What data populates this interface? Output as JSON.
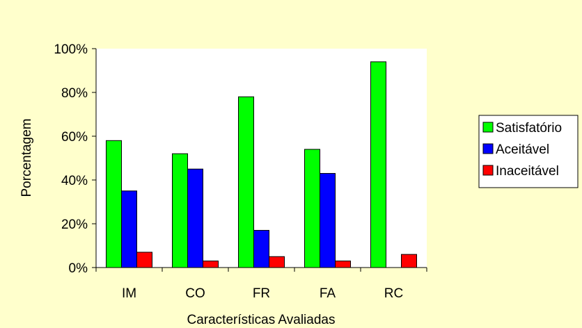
{
  "chart_data": {
    "type": "bar",
    "title": "",
    "xlabel": "Características Avaliadas",
    "ylabel": "Porcentagem",
    "ylim": [
      0,
      100
    ],
    "y_ticks": [
      "0%",
      "20%",
      "40%",
      "60%",
      "80%",
      "100%"
    ],
    "y_tick_values": [
      0,
      20,
      40,
      60,
      80,
      100
    ],
    "categories": [
      "IM",
      "CO",
      "FR",
      "FA",
      "RC"
    ],
    "series": [
      {
        "name": "Satisfatório",
        "color": "#00ff00",
        "values": [
          58,
          52,
          78,
          54,
          94
        ]
      },
      {
        "name": "Aceitável",
        "color": "#0000ff",
        "values": [
          35,
          45,
          17,
          43,
          0
        ]
      },
      {
        "name": "Inaceitável",
        "color": "#ff0000",
        "values": [
          7,
          3,
          5,
          3,
          6
        ]
      }
    ],
    "grid": false,
    "legend_position": "right",
    "plot_background": "#ffffff",
    "page_background": "#ffffcc"
  }
}
